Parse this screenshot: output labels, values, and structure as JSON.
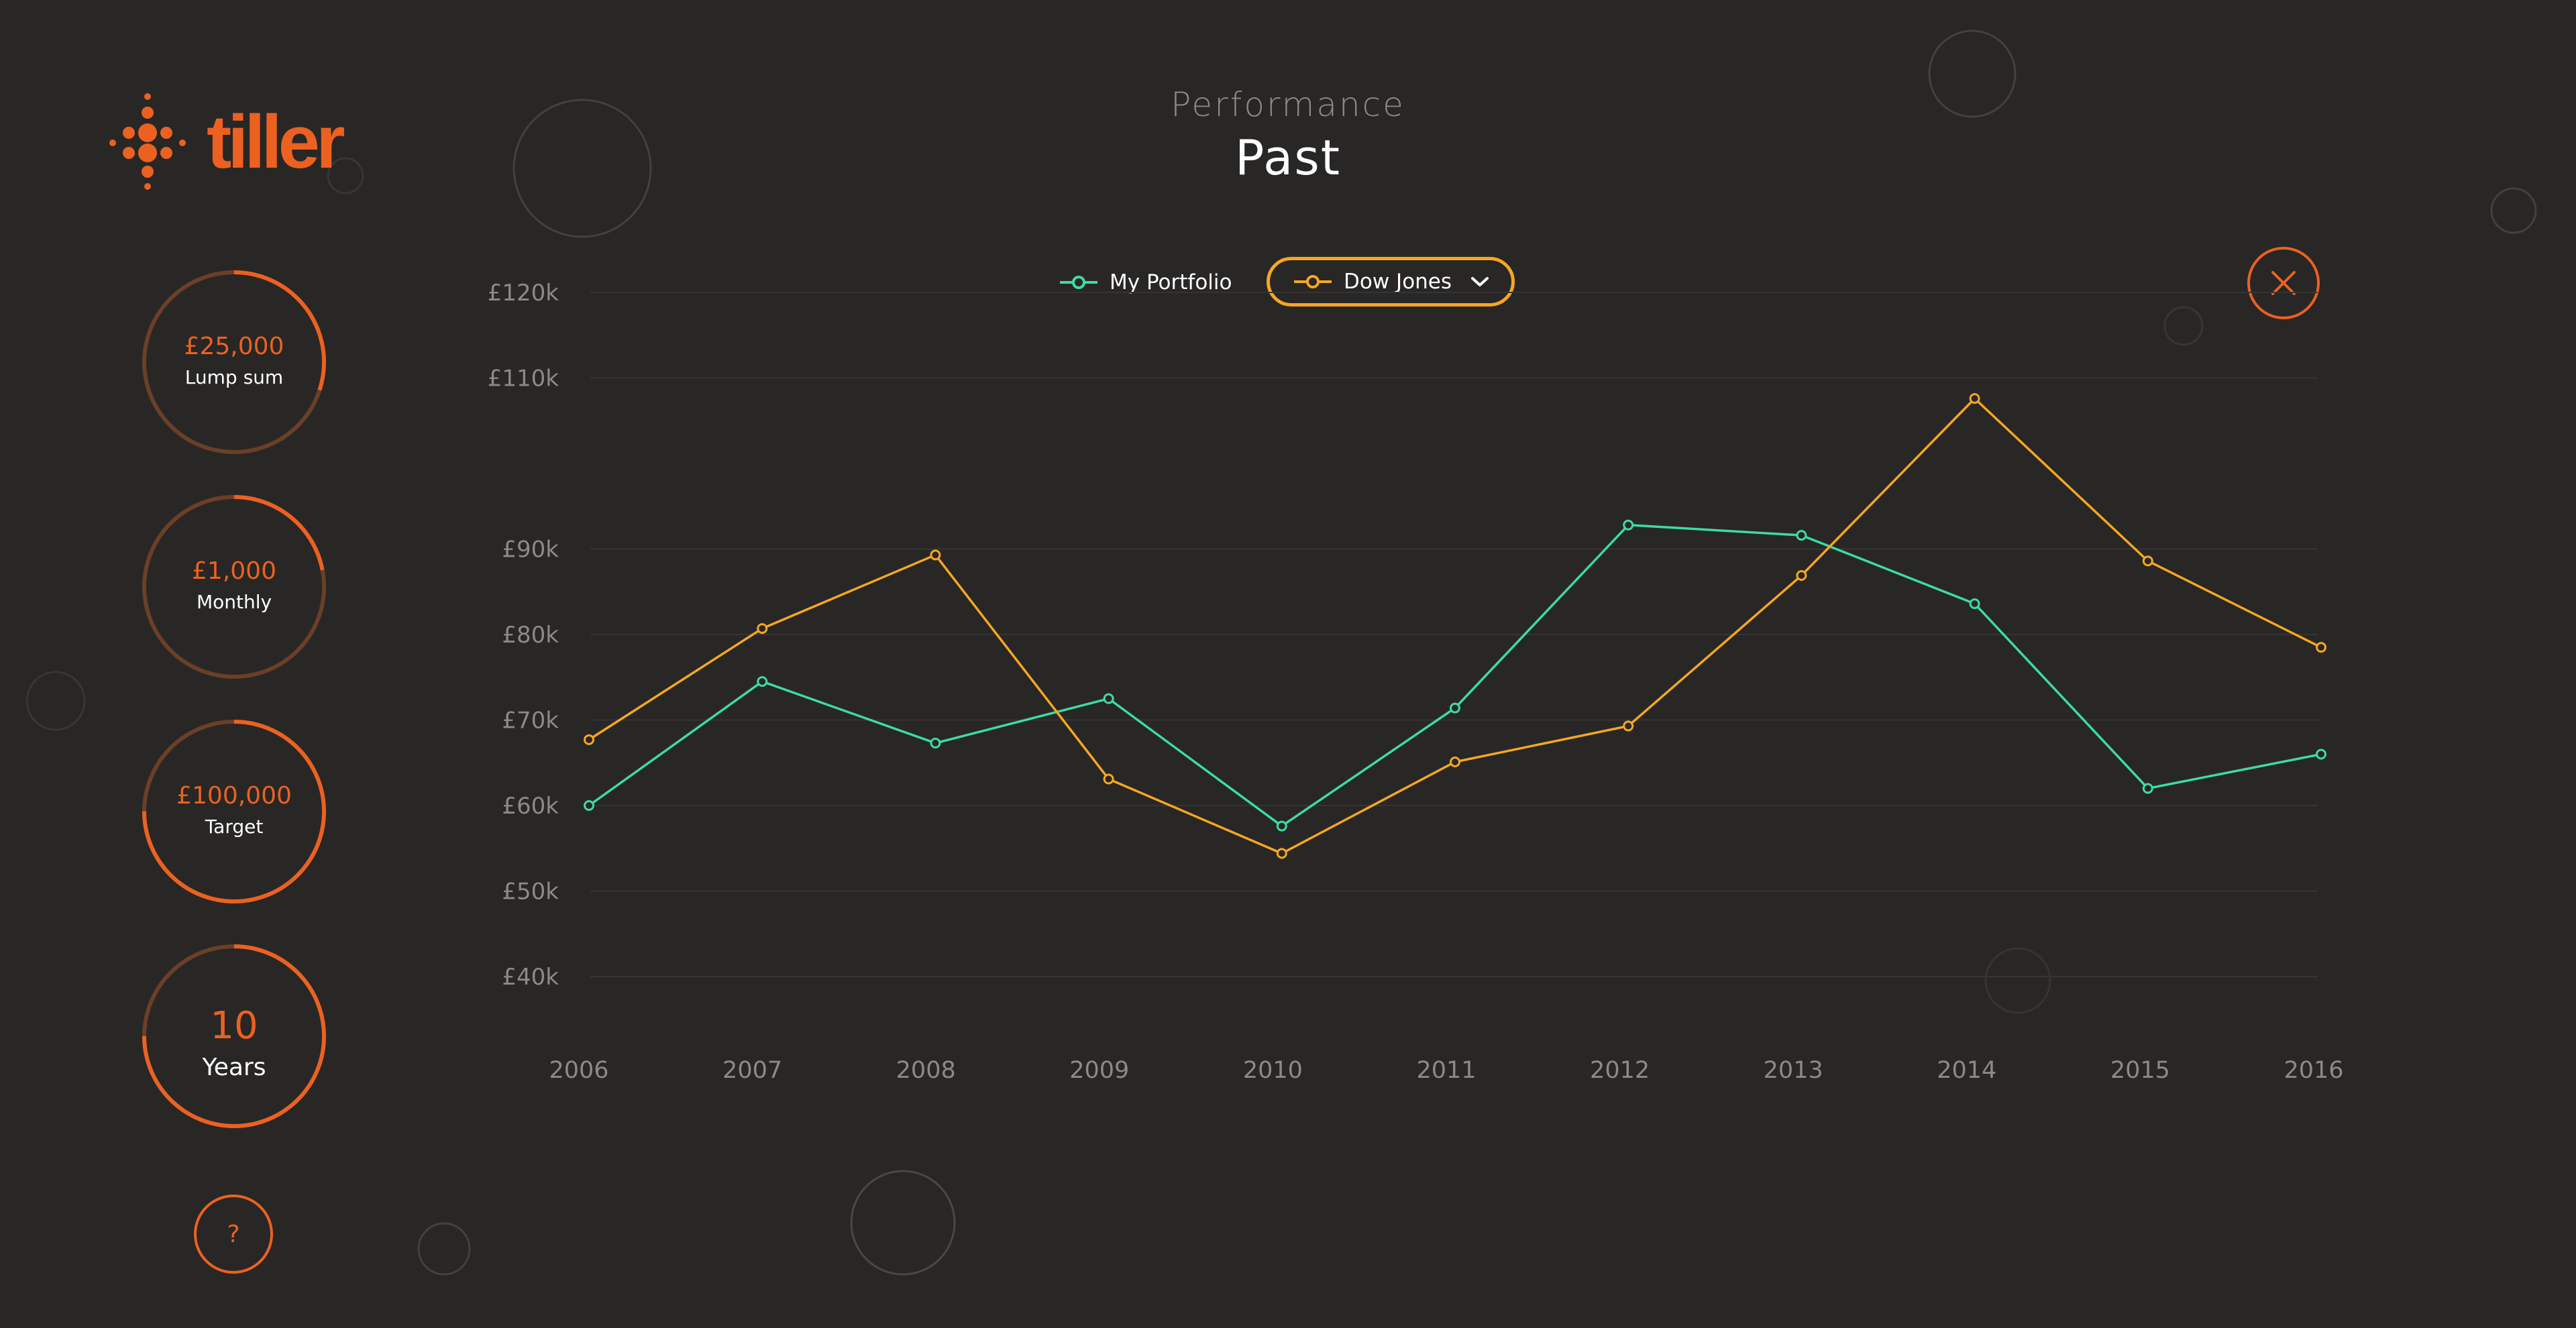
{
  "brand": {
    "name": "tiller",
    "accent": "#ec6121"
  },
  "header": {
    "subtitle": "Performance",
    "title": "Past"
  },
  "sidebar": {
    "items": [
      {
        "value": "£25,000",
        "label": "Lump sum",
        "progress": 0.3
      },
      {
        "value": "£1,000",
        "label": "Monthly",
        "progress": 0.22
      },
      {
        "value": "£100,000",
        "label": "Target",
        "progress": 0.75
      },
      {
        "value": "10",
        "label": "Years",
        "progress": 0.75
      }
    ],
    "help_label": "?"
  },
  "legend": {
    "portfolio_label": "My Portfolio",
    "benchmark_label": "Dow Jones"
  },
  "icons": {
    "close": "close-icon",
    "dropdown": "chevron-down-icon",
    "logo": "tiller-logo-icon"
  },
  "chart_data": {
    "type": "line",
    "x": [
      "2006",
      "2007",
      "2008",
      "2009",
      "2010",
      "2011",
      "2012",
      "2013",
      "2014",
      "2015",
      "2016"
    ],
    "yticks": [
      "£120k",
      "£110k",
      "£90k",
      "£80k",
      "£70k",
      "£60k",
      "£50k",
      "£40k"
    ],
    "ylim": [
      40,
      120
    ],
    "grid": true,
    "legend_position": "top-center",
    "series": [
      {
        "name": "My Portfolio",
        "color": "#3ddba3",
        "values": [
          60,
          74.5,
          67.3,
          72.5,
          57.6,
          71.4,
          92.8,
          91.6,
          83.6,
          62.0,
          66.0
        ]
      },
      {
        "name": "Dow Jones",
        "color": "#f5a623",
        "values": [
          67.7,
          80.7,
          89.3,
          63.1,
          54.4,
          65.1,
          69.3,
          86.9,
          107.6,
          88.6,
          78.5
        ]
      }
    ]
  }
}
